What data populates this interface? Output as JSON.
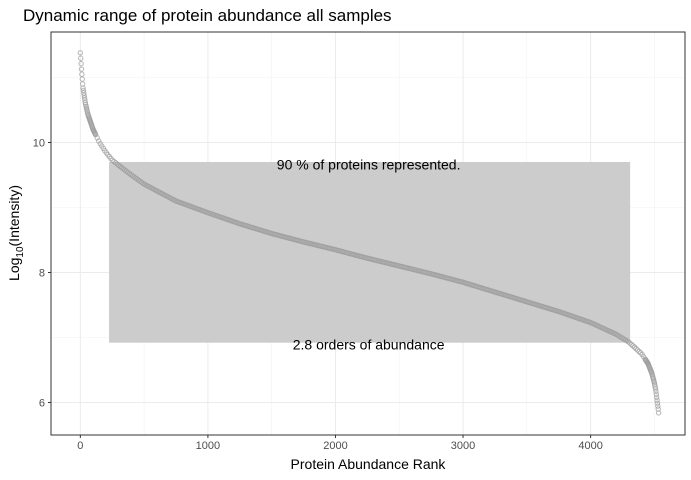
{
  "chart_data": {
    "type": "scatter",
    "title": "Dynamic range of protein abundance all samples",
    "xlabel": "Protein Abundance Rank",
    "ylabel_main": "Log",
    "ylabel_sub": "10",
    "ylabel_rest": "(Intensity)",
    "xlim": [
      -230,
      4740
    ],
    "ylim": [
      5.5,
      11.7
    ],
    "x_ticks": [
      0,
      1000,
      2000,
      3000,
      4000
    ],
    "x_tick_labels": [
      "0",
      "1000",
      "2000",
      "3000",
      "4000"
    ],
    "y_ticks": [
      6,
      8,
      10
    ],
    "y_tick_labels": [
      "6",
      "8",
      "10"
    ],
    "grid": true,
    "highlight_range": {
      "x": [
        225,
        4310
      ],
      "y": [
        6.92,
        9.7
      ],
      "color": "#cccccc"
    },
    "annotations": [
      {
        "text": "90 % of proteins represented.",
        "x": 2260,
        "y": 9.66
      },
      {
        "text": "2.8 orders of abundance",
        "x": 2260,
        "y": 6.89
      }
    ],
    "point_color": "#9e9e9e",
    "n_points": 4540,
    "curve_profile": [
      [
        0,
        11.38
      ],
      [
        10,
        11.1
      ],
      [
        20,
        10.85
      ],
      [
        40,
        10.6
      ],
      [
        60,
        10.43
      ],
      [
        100,
        10.2
      ],
      [
        150,
        10.0
      ],
      [
        200,
        9.85
      ],
      [
        250,
        9.73
      ],
      [
        300,
        9.65
      ],
      [
        400,
        9.5
      ],
      [
        500,
        9.36
      ],
      [
        750,
        9.1
      ],
      [
        1000,
        8.92
      ],
      [
        1250,
        8.75
      ],
      [
        1500,
        8.6
      ],
      [
        1750,
        8.47
      ],
      [
        2000,
        8.35
      ],
      [
        2250,
        8.22
      ],
      [
        2500,
        8.1
      ],
      [
        2750,
        7.98
      ],
      [
        3000,
        7.85
      ],
      [
        3250,
        7.7
      ],
      [
        3500,
        7.55
      ],
      [
        3750,
        7.4
      ],
      [
        4000,
        7.23
      ],
      [
        4200,
        7.05
      ],
      [
        4300,
        6.93
      ],
      [
        4400,
        6.75
      ],
      [
        4450,
        6.6
      ],
      [
        4480,
        6.45
      ],
      [
        4500,
        6.3
      ],
      [
        4510,
        6.2
      ],
      [
        4520,
        6.05
      ],
      [
        4530,
        5.9
      ],
      [
        4535,
        5.8
      ]
    ]
  }
}
